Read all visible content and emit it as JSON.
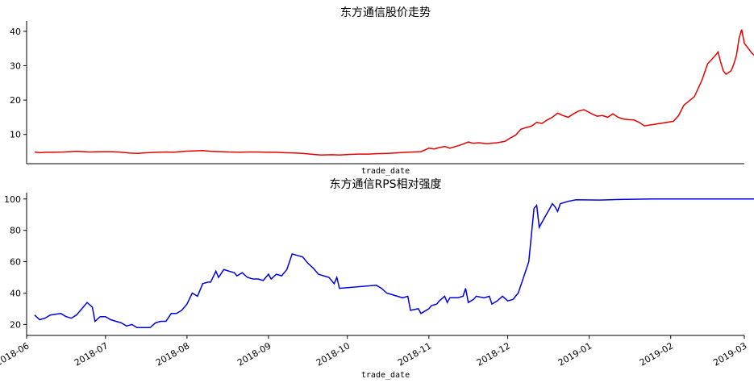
{
  "chart_data": [
    {
      "type": "line",
      "title": "东方通信股价走势",
      "xlabel": "trade_date",
      "ylabel": "",
      "ylim": [
        1.5,
        43
      ],
      "yticks": [
        10,
        20,
        30,
        40
      ],
      "xlim": [
        "2018-06-01",
        "2019-03-01"
      ],
      "grid": false,
      "series": [
        {
          "color": "#e60000",
          "points": [
            [
              "2018-06-04",
              4.9
            ],
            [
              "2018-06-06",
              4.7
            ],
            [
              "2018-06-08",
              4.8
            ],
            [
              "2018-06-12",
              4.85
            ],
            [
              "2018-06-15",
              4.9
            ],
            [
              "2018-06-20",
              5.1
            ],
            [
              "2018-06-25",
              4.9
            ],
            [
              "2018-06-29",
              5.0
            ],
            [
              "2018-07-03",
              5.0
            ],
            [
              "2018-07-06",
              4.9
            ],
            [
              "2018-07-10",
              4.6
            ],
            [
              "2018-07-13",
              4.5
            ],
            [
              "2018-07-17",
              4.7
            ],
            [
              "2018-07-20",
              4.8
            ],
            [
              "2018-07-24",
              4.9
            ],
            [
              "2018-07-27",
              4.85
            ],
            [
              "2018-07-31",
              5.1
            ],
            [
              "2018-08-03",
              5.2
            ],
            [
              "2018-08-07",
              5.3
            ],
            [
              "2018-08-10",
              5.1
            ],
            [
              "2018-08-14",
              5.0
            ],
            [
              "2018-08-17",
              4.9
            ],
            [
              "2018-08-21",
              4.85
            ],
            [
              "2018-08-24",
              4.9
            ],
            [
              "2018-08-28",
              4.9
            ],
            [
              "2018-08-31",
              4.85
            ],
            [
              "2018-09-04",
              4.8
            ],
            [
              "2018-09-07",
              4.7
            ],
            [
              "2018-09-11",
              4.6
            ],
            [
              "2018-09-14",
              4.5
            ],
            [
              "2018-09-18",
              4.2
            ],
            [
              "2018-09-21",
              4.0
            ],
            [
              "2018-09-25",
              4.1
            ],
            [
              "2018-09-28",
              4.0
            ],
            [
              "2018-10-02",
              4.2
            ],
            [
              "2018-10-05",
              4.3
            ],
            [
              "2018-10-09",
              4.3
            ],
            [
              "2018-10-12",
              4.4
            ],
            [
              "2018-10-16",
              4.5
            ],
            [
              "2018-10-19",
              4.6
            ],
            [
              "2018-10-23",
              4.8
            ],
            [
              "2018-10-26",
              4.9
            ],
            [
              "2018-10-29",
              5.0
            ],
            [
              "2018-11-01",
              6.0
            ],
            [
              "2018-11-03",
              5.8
            ],
            [
              "2018-11-05",
              6.2
            ],
            [
              "2018-11-07",
              6.5
            ],
            [
              "2018-11-09",
              6.0
            ],
            [
              "2018-11-12",
              6.7
            ],
            [
              "2018-11-14",
              7.2
            ],
            [
              "2018-11-16",
              7.8
            ],
            [
              "2018-11-18",
              7.4
            ],
            [
              "2018-11-20",
              7.6
            ],
            [
              "2018-11-23",
              7.3
            ],
            [
              "2018-11-27",
              7.6
            ],
            [
              "2018-11-30",
              8.0
            ],
            [
              "2018-12-02",
              9.0
            ],
            [
              "2018-12-04",
              9.8
            ],
            [
              "2018-12-06",
              11.5
            ],
            [
              "2018-12-08",
              12.0
            ],
            [
              "2018-12-10",
              12.4
            ],
            [
              "2018-12-12",
              13.5
            ],
            [
              "2018-12-14",
              13.2
            ],
            [
              "2018-12-16",
              14.2
            ],
            [
              "2018-12-18",
              15.0
            ],
            [
              "2018-12-20",
              16.2
            ],
            [
              "2018-12-22",
              15.5
            ],
            [
              "2018-12-24",
              15.0
            ],
            [
              "2018-12-26",
              16.0
            ],
            [
              "2018-12-28",
              16.8
            ],
            [
              "2018-12-30",
              17.2
            ],
            [
              "2019-01-02",
              16.0
            ],
            [
              "2019-01-04",
              15.3
            ],
            [
              "2019-01-06",
              15.5
            ],
            [
              "2019-01-08",
              15.0
            ],
            [
              "2019-01-10",
              16.0
            ],
            [
              "2019-01-12",
              15.0
            ],
            [
              "2019-01-14",
              14.5
            ],
            [
              "2019-01-16",
              14.3
            ],
            [
              "2019-01-18",
              14.2
            ],
            [
              "2019-01-20",
              13.5
            ],
            [
              "2019-01-22",
              12.5
            ],
            [
              "2019-02-02",
              13.8
            ],
            [
              "2019-02-04",
              15.5
            ],
            [
              "2019-02-06",
              18.5
            ],
            [
              "2019-02-10",
              21.0
            ],
            [
              "2019-02-13",
              26.0
            ],
            [
              "2019-02-15",
              30.5
            ],
            [
              "2019-02-18",
              33.0
            ],
            [
              "2019-02-19",
              34.0
            ],
            [
              "2019-02-20",
              31.0
            ],
            [
              "2019-02-21",
              28.5
            ],
            [
              "2019-02-22",
              27.5
            ],
            [
              "2019-02-24",
              28.5
            ],
            [
              "2019-02-25",
              30.5
            ],
            [
              "2019-02-26",
              33.0
            ],
            [
              "2019-02-27",
              38.0
            ],
            [
              "2019-02-28",
              40.5
            ],
            [
              "2019-03-01",
              36.5
            ],
            [
              "2019-03-04",
              33.5
            ],
            [
              "2019-03-05",
              33.0
            ],
            [
              "2019-03-06",
              31.0
            ],
            [
              "2019-03-07",
              34.5
            ],
            [
              "2019-03-08",
              30.5
            ],
            [
              "2019-03-11",
              33.0
            ],
            [
              "2019-03-12",
              31.0
            ],
            [
              "2019-03-13",
              30.0
            ]
          ]
        }
      ]
    },
    {
      "type": "line",
      "title": "东方通信RPS相对强度",
      "xlabel": "trade_date",
      "ylabel": "",
      "ylim": [
        13,
        104
      ],
      "yticks": [
        20,
        40,
        60,
        80,
        100
      ],
      "xlim": [
        "2018-06-01",
        "2019-03-01"
      ],
      "xticks": [
        "2018-06",
        "2018-07",
        "2018-08",
        "2018-09",
        "2018-10",
        "2018-11",
        "2018-12",
        "2019-01",
        "2019-02",
        "2019-03"
      ],
      "grid": false,
      "series": [
        {
          "color": "#0000e6",
          "points": [
            [
              "2018-06-04",
              26
            ],
            [
              "2018-06-06",
              23
            ],
            [
              "2018-06-08",
              24
            ],
            [
              "2018-06-10",
              26
            ],
            [
              "2018-06-14",
              27
            ],
            [
              "2018-06-16",
              25
            ],
            [
              "2018-06-18",
              24
            ],
            [
              "2018-06-20",
              26
            ],
            [
              "2018-06-22",
              30
            ],
            [
              "2018-06-24",
              34
            ],
            [
              "2018-06-26",
              31
            ],
            [
              "2018-06-27",
              22
            ],
            [
              "2018-06-29",
              25
            ],
            [
              "2018-07-01",
              25
            ],
            [
              "2018-07-03",
              23
            ],
            [
              "2018-07-05",
              22
            ],
            [
              "2018-07-07",
              21
            ],
            [
              "2018-07-09",
              19
            ],
            [
              "2018-07-11",
              20
            ],
            [
              "2018-07-13",
              18
            ],
            [
              "2018-07-16",
              18
            ],
            [
              "2018-07-18",
              18
            ],
            [
              "2018-07-20",
              21
            ],
            [
              "2018-07-22",
              22
            ],
            [
              "2018-07-24",
              22
            ],
            [
              "2018-07-26",
              27
            ],
            [
              "2018-07-28",
              27
            ],
            [
              "2018-07-30",
              29
            ],
            [
              "2018-08-01",
              33
            ],
            [
              "2018-08-03",
              40
            ],
            [
              "2018-08-05",
              38
            ],
            [
              "2018-08-07",
              46
            ],
            [
              "2018-08-09",
              47
            ],
            [
              "2018-08-10",
              47
            ],
            [
              "2018-08-12",
              54
            ],
            [
              "2018-08-13",
              50
            ],
            [
              "2018-08-15",
              55
            ],
            [
              "2018-08-17",
              54
            ],
            [
              "2018-08-19",
              53
            ],
            [
              "2018-08-20",
              51
            ],
            [
              "2018-08-22",
              53
            ],
            [
              "2018-08-24",
              50
            ],
            [
              "2018-08-26",
              49
            ],
            [
              "2018-08-28",
              49
            ],
            [
              "2018-08-30",
              48
            ],
            [
              "2018-09-01",
              52
            ],
            [
              "2018-09-02",
              49
            ],
            [
              "2018-09-04",
              52
            ],
            [
              "2018-09-06",
              51
            ],
            [
              "2018-09-08",
              55
            ],
            [
              "2018-09-10",
              65
            ],
            [
              "2018-09-12",
              64
            ],
            [
              "2018-09-14",
              63
            ],
            [
              "2018-09-16",
              59
            ],
            [
              "2018-09-18",
              56
            ],
            [
              "2018-09-20",
              52
            ],
            [
              "2018-09-22",
              51
            ],
            [
              "2018-09-24",
              50
            ],
            [
              "2018-09-26",
              46
            ],
            [
              "2018-09-27",
              50
            ],
            [
              "2018-09-28",
              43
            ],
            [
              "2018-10-12",
              45
            ],
            [
              "2018-10-14",
              43
            ],
            [
              "2018-10-16",
              40
            ],
            [
              "2018-10-18",
              39
            ],
            [
              "2018-10-20",
              38
            ],
            [
              "2018-10-22",
              37
            ],
            [
              "2018-10-24",
              38
            ],
            [
              "2018-10-25",
              29
            ],
            [
              "2018-10-28",
              30
            ],
            [
              "2018-10-29",
              27
            ],
            [
              "2018-10-30",
              28
            ],
            [
              "2018-11-01",
              30
            ],
            [
              "2018-11-02",
              32
            ],
            [
              "2018-11-04",
              33
            ],
            [
              "2018-11-05",
              35
            ],
            [
              "2018-11-07",
              38
            ],
            [
              "2018-11-08",
              34
            ],
            [
              "2018-11-09",
              37
            ],
            [
              "2018-11-12",
              37
            ],
            [
              "2018-11-14",
              38
            ],
            [
              "2018-11-15",
              43
            ],
            [
              "2018-11-16",
              34
            ],
            [
              "2018-11-18",
              36
            ],
            [
              "2018-11-19",
              38
            ],
            [
              "2018-11-22",
              37
            ],
            [
              "2018-11-24",
              38
            ],
            [
              "2018-11-25",
              33
            ],
            [
              "2018-11-27",
              35
            ],
            [
              "2018-11-29",
              38
            ],
            [
              "2018-12-01",
              35
            ],
            [
              "2018-12-03",
              36
            ],
            [
              "2018-12-05",
              40
            ],
            [
              "2018-12-07",
              50
            ],
            [
              "2018-12-09",
              60
            ],
            [
              "2018-12-11",
              94
            ],
            [
              "2018-12-12",
              96
            ],
            [
              "2018-12-13",
              82
            ],
            [
              "2018-12-15",
              88
            ],
            [
              "2018-12-17",
              94
            ],
            [
              "2018-12-18",
              97
            ],
            [
              "2018-12-19",
              95
            ],
            [
              "2018-12-20",
              92
            ],
            [
              "2018-12-21",
              97
            ],
            [
              "2018-12-24",
              98.5
            ],
            [
              "2018-12-27",
              99.5
            ],
            [
              "2019-01-05",
              99.3
            ],
            [
              "2019-01-10",
              99.6
            ],
            [
              "2019-01-15",
              99.8
            ],
            [
              "2019-01-25",
              100
            ],
            [
              "2019-02-15",
              100
            ],
            [
              "2019-03-13",
              100
            ]
          ]
        }
      ]
    }
  ]
}
